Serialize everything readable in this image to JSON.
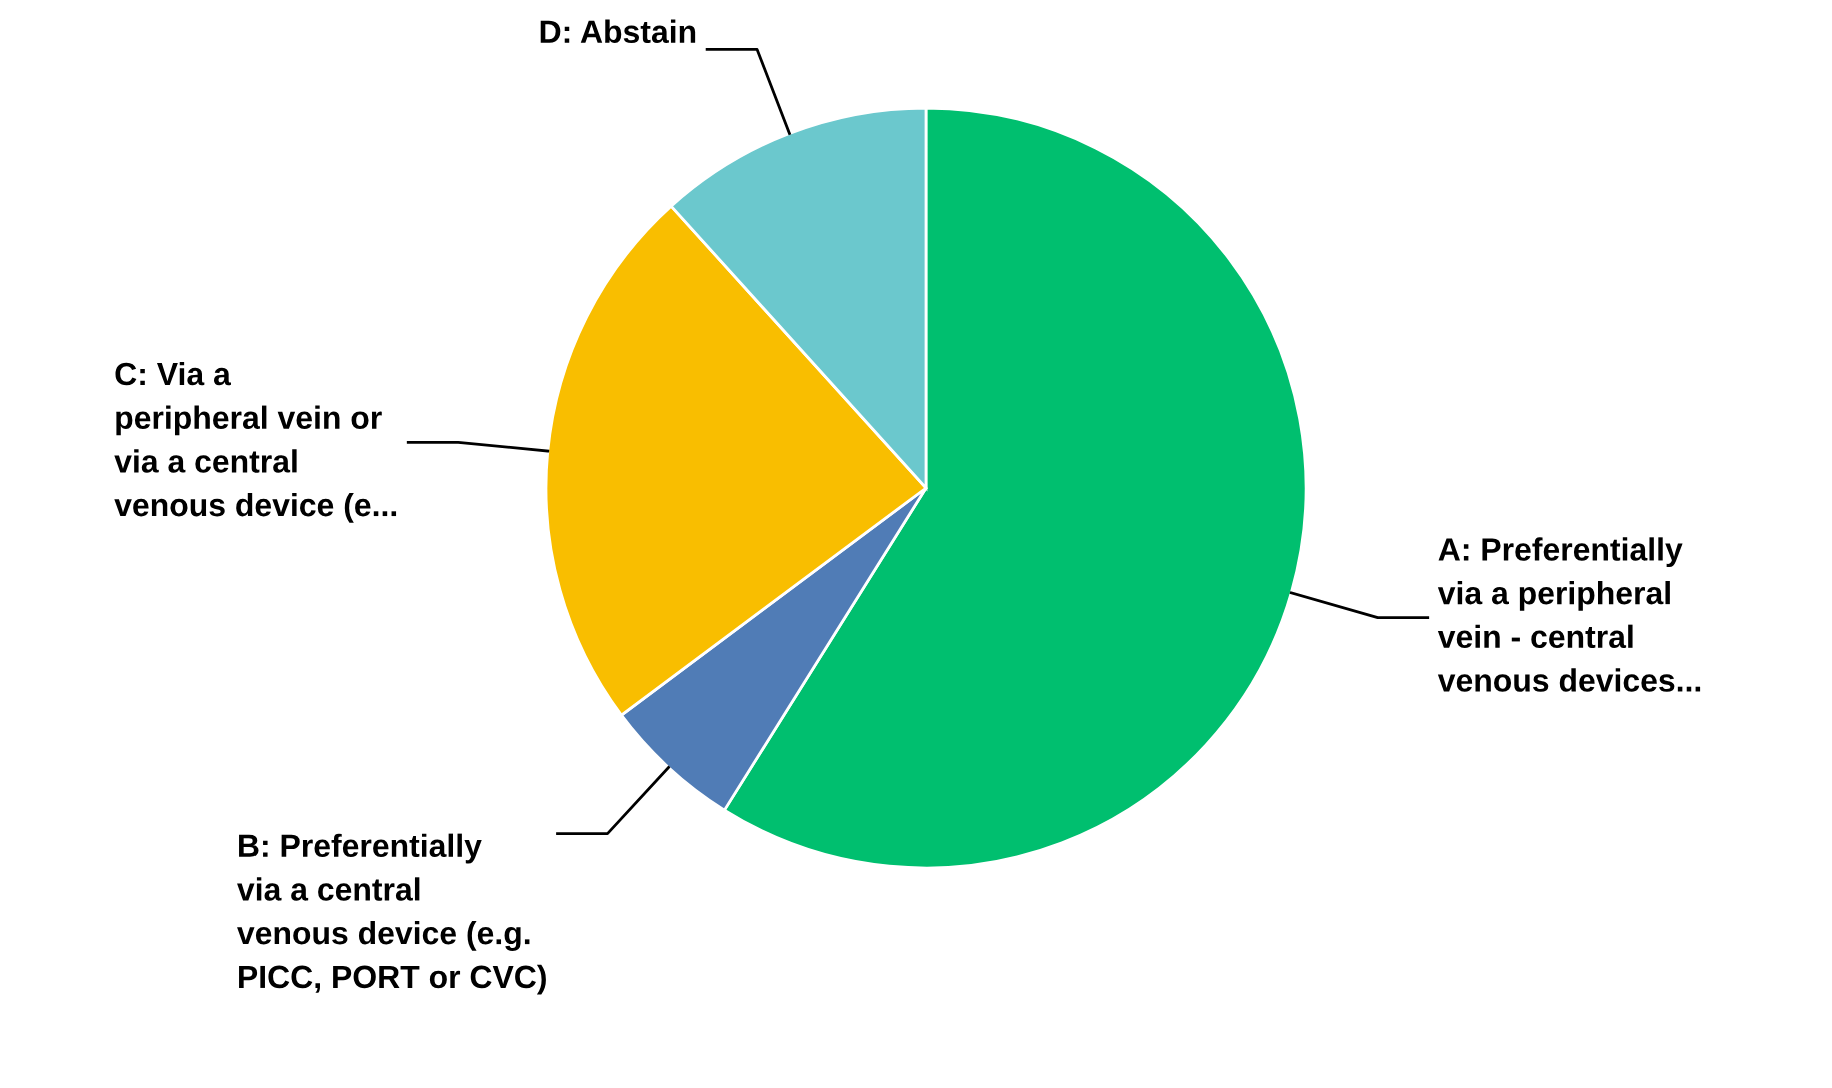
{
  "chart_data": {
    "type": "pie",
    "categories": [
      "A: Preferentially\nvia a peripheral\nvein - central\nvenous devices...",
      "B: Preferentially\nvia a central\nvenous device (e.g.\nPICC, PORT or CVC)",
      "C: Via a\nperipheral vein or\nvia a central\nvenous device (e...",
      "D: Abstain"
    ],
    "values": [
      58.9,
      5.9,
      23.5,
      11.7
    ],
    "colors": [
      "#00bf6f",
      "#507cb6",
      "#f9be00",
      "#6bc8cd"
    ],
    "legend": false
  }
}
